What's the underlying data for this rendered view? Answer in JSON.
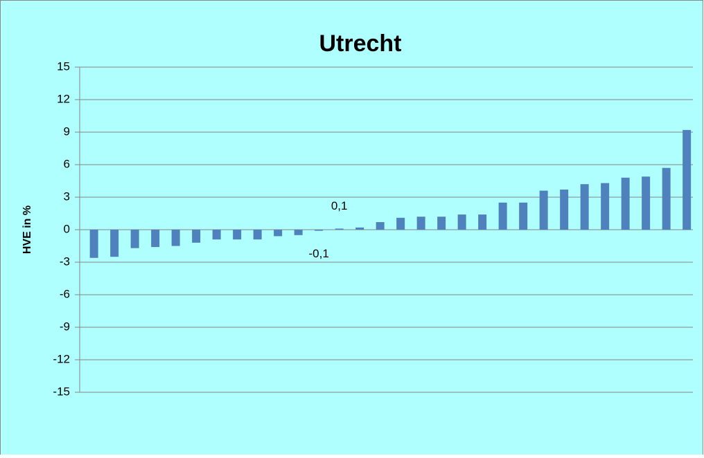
{
  "chart_data": {
    "type": "bar",
    "title": "Utrecht",
    "y_label": "HVE in %",
    "categories": [
      null,
      null,
      null,
      null,
      null,
      null,
      null,
      null,
      null,
      null,
      null,
      null,
      null,
      null,
      null,
      null,
      null,
      null,
      null,
      null,
      null,
      null,
      null,
      null,
      null,
      null,
      null,
      null,
      null,
      null
    ],
    "values": [
      -2.6,
      -2.5,
      -1.7,
      -1.6,
      -1.5,
      -1.2,
      -0.9,
      -0.9,
      -0.9,
      -0.6,
      -0.5,
      -0.1,
      0.1,
      0.2,
      0.7,
      1.1,
      1.2,
      1.2,
      1.4,
      1.4,
      2.5,
      2.5,
      3.6,
      3.7,
      4.2,
      4.3,
      4.8,
      4.9,
      5.7,
      9.2
    ],
    "value_labels": [
      null,
      null,
      null,
      null,
      null,
      null,
      null,
      null,
      null,
      null,
      null,
      "-0,1",
      "0,1",
      null,
      null,
      null,
      null,
      null,
      null,
      null,
      null,
      null,
      null,
      null,
      null,
      null,
      null,
      null,
      null,
      null
    ],
    "color": "#4f81bd",
    "ylim": [
      -15,
      15
    ],
    "yticks": [
      -15,
      -12,
      -9,
      -6,
      -3,
      0,
      3,
      6,
      9,
      12,
      15
    ],
    "grid": true
  }
}
